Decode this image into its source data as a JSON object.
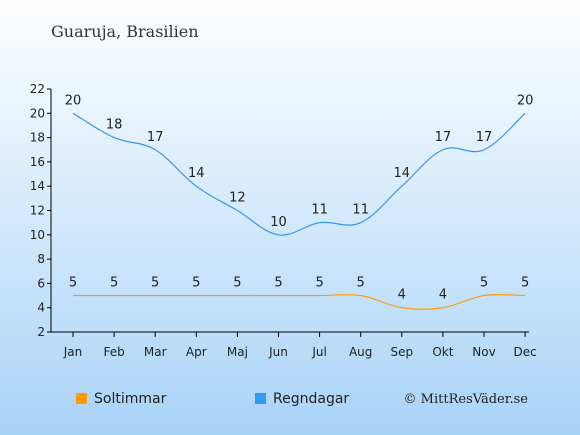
{
  "chart_data": {
    "type": "line",
    "title": "Guaruja, Brasilien",
    "categories": [
      "Jan",
      "Feb",
      "Mar",
      "Apr",
      "Maj",
      "Jun",
      "Jul",
      "Aug",
      "Sep",
      "Okt",
      "Nov",
      "Dec"
    ],
    "yticks": [
      "2",
      "4",
      "6",
      "8",
      "10",
      "12",
      "14",
      "16",
      "18",
      "20",
      "22"
    ],
    "ylim": [
      2,
      22
    ],
    "series": [
      {
        "name": "Regndagar",
        "color": "#3399ee",
        "values": [
          20,
          18,
          17,
          14,
          12,
          10,
          11,
          11,
          14,
          17,
          17,
          20
        ],
        "labels": [
          "20",
          "18",
          "17",
          "14",
          "12",
          "10",
          "11",
          "11",
          "14",
          "17",
          "17",
          "20"
        ]
      },
      {
        "name": "Soltimmar",
        "color": "#ff9900",
        "values": [
          5,
          5,
          5,
          5,
          5,
          5,
          5,
          5,
          4,
          4,
          5,
          5
        ],
        "labels": [
          "5",
          "5",
          "5",
          "5",
          "5",
          "5",
          "5",
          "5",
          "4",
          "4",
          "5",
          "5"
        ]
      }
    ],
    "legend": [
      {
        "name": "Soltimmar",
        "color": "#ff9900"
      },
      {
        "name": "Regndagar",
        "color": "#3399ee"
      }
    ],
    "legend_position": "bottom",
    "grid": false,
    "credit": "© MittResVäder.se",
    "colors": {
      "background_top": "#ffffff",
      "background_bottom": "#a9d3f7",
      "axis": "#000000"
    }
  }
}
